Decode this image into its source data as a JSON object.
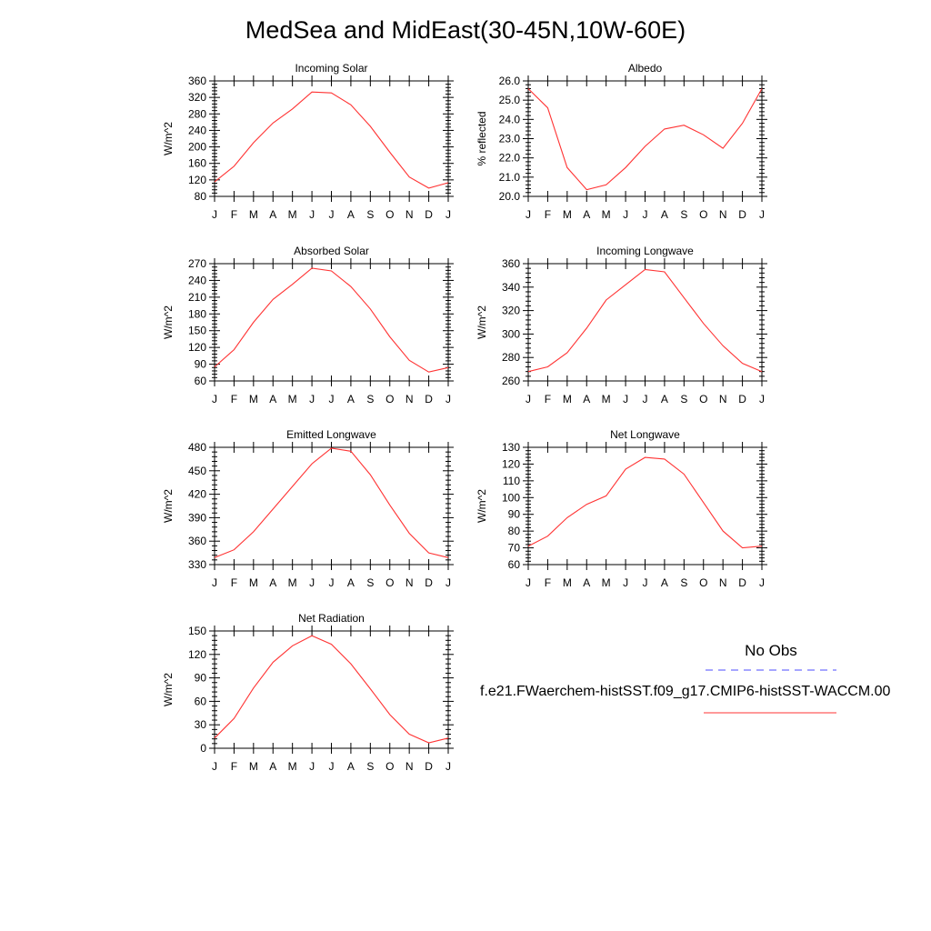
{
  "title": "MedSea and MidEast(30-45N,10W-60E)",
  "legend": {
    "obs_label": "No Obs",
    "obs_color": "#4d4dff",
    "run_label": "f.e21.FWaerchem-histSST.f09_g17.CMIP6-histSST-WACCM.00",
    "run_color": "#ff3333"
  },
  "chart_data": [
    {
      "type": "line",
      "title": "Incoming Solar",
      "ylabel": "W/m^2",
      "categories": [
        "J",
        "F",
        "M",
        "A",
        "M",
        "J",
        "J",
        "A",
        "S",
        "O",
        "N",
        "D",
        "J"
      ],
      "ylim": [
        80,
        360
      ],
      "yticks": [
        80,
        120,
        160,
        200,
        240,
        280,
        320,
        360
      ],
      "ytick_labels": [
        "80",
        "120",
        "160",
        "200",
        "240",
        "280",
        "320",
        "360"
      ],
      "series": [
        {
          "values": [
            115,
            153,
            210,
            258,
            292,
            333,
            331,
            302,
            250,
            187,
            127,
            100,
            113
          ]
        }
      ]
    },
    {
      "type": "line",
      "title": "Albedo",
      "ylabel": "% reflected",
      "categories": [
        "J",
        "F",
        "M",
        "A",
        "M",
        "J",
        "J",
        "A",
        "S",
        "O",
        "N",
        "D",
        "J"
      ],
      "ylim": [
        20.0,
        26.0
      ],
      "yticks": [
        20,
        21,
        22,
        23,
        24,
        25,
        26
      ],
      "ytick_labels": [
        "20.0",
        "21.0",
        "22.0",
        "23.0",
        "24.0",
        "25.0",
        "26.0"
      ],
      "series": [
        {
          "values": [
            25.6,
            24.6,
            21.5,
            20.35,
            20.6,
            21.5,
            22.6,
            23.5,
            23.7,
            23.2,
            22.5,
            23.8,
            25.6
          ]
        }
      ]
    },
    {
      "type": "line",
      "title": "Absorbed Solar",
      "ylabel": "W/m^2",
      "categories": [
        "J",
        "F",
        "M",
        "A",
        "M",
        "J",
        "J",
        "A",
        "S",
        "O",
        "N",
        "D",
        "J"
      ],
      "ylim": [
        60,
        270
      ],
      "yticks": [
        60,
        90,
        120,
        150,
        180,
        210,
        240,
        270
      ],
      "ytick_labels": [
        "60",
        "90",
        "120",
        "150",
        "180",
        "210",
        "240",
        "270"
      ],
      "series": [
        {
          "values": [
            85,
            116,
            165,
            206,
            233,
            262,
            257,
            229,
            189,
            139,
            97,
            76,
            84
          ]
        }
      ]
    },
    {
      "type": "line",
      "title": "Incoming Longwave",
      "ylabel": "W/m^2",
      "categories": [
        "J",
        "F",
        "M",
        "A",
        "M",
        "J",
        "J",
        "A",
        "S",
        "O",
        "N",
        "D",
        "J"
      ],
      "ylim": [
        260,
        360
      ],
      "yticks": [
        260,
        280,
        300,
        320,
        340,
        360
      ],
      "ytick_labels": [
        "260",
        "280",
        "300",
        "320",
        "340",
        "360"
      ],
      "series": [
        {
          "values": [
            268,
            272,
            284,
            305,
            329,
            342,
            355,
            353,
            331,
            309,
            290,
            275,
            268
          ]
        }
      ]
    },
    {
      "type": "line",
      "title": "Emitted Longwave",
      "ylabel": "W/m^2",
      "categories": [
        "J",
        "F",
        "M",
        "A",
        "M",
        "J",
        "J",
        "A",
        "S",
        "O",
        "N",
        "D",
        "J"
      ],
      "ylim": [
        330,
        480
      ],
      "yticks": [
        330,
        360,
        390,
        420,
        450,
        480
      ],
      "ytick_labels": [
        "330",
        "360",
        "390",
        "420",
        "450",
        "480"
      ],
      "series": [
        {
          "values": [
            339,
            349,
            372,
            401,
            430,
            459,
            479,
            475,
            445,
            406,
            370,
            345,
            339
          ]
        }
      ]
    },
    {
      "type": "line",
      "title": "Net Longwave",
      "ylabel": "W/m^2",
      "categories": [
        "J",
        "F",
        "M",
        "A",
        "M",
        "J",
        "J",
        "A",
        "S",
        "O",
        "N",
        "D",
        "J"
      ],
      "ylim": [
        60,
        130
      ],
      "yticks": [
        60,
        70,
        80,
        90,
        100,
        110,
        120,
        130
      ],
      "ytick_labels": [
        "60",
        "70",
        "80",
        "90",
        "100",
        "110",
        "120",
        "130"
      ],
      "series": [
        {
          "values": [
            71,
            77,
            88,
            96,
            101,
            117,
            124,
            123,
            114,
            97,
            80,
            70,
            71
          ]
        }
      ]
    },
    {
      "type": "line",
      "title": "Net Radiation",
      "ylabel": "W/m^2",
      "categories": [
        "J",
        "F",
        "M",
        "A",
        "M",
        "J",
        "J",
        "A",
        "S",
        "O",
        "N",
        "D",
        "J"
      ],
      "ylim": [
        0,
        150
      ],
      "yticks": [
        0,
        30,
        60,
        90,
        120,
        150
      ],
      "ytick_labels": [
        "0",
        "30",
        "60",
        "90",
        "120",
        "150"
      ],
      "series": [
        {
          "values": [
            13,
            38,
            77,
            110,
            131,
            144,
            133,
            108,
            76,
            43,
            18,
            7,
            13
          ]
        }
      ]
    }
  ]
}
